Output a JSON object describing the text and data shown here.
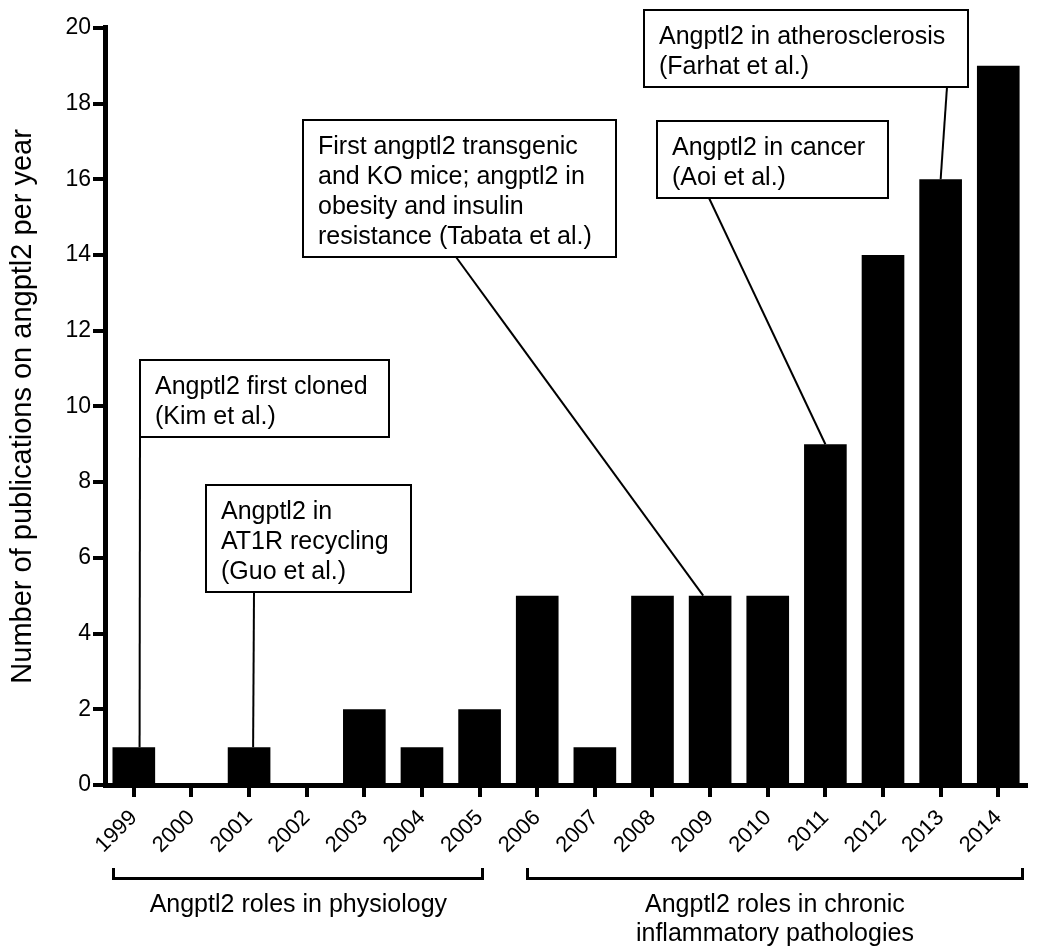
{
  "chart_data": {
    "type": "bar",
    "ylabel": "Number of publications on angptl2 per year",
    "categories": [
      "1999",
      "2000",
      "2001",
      "2002",
      "2003",
      "2004",
      "2005",
      "2006",
      "2007",
      "2008",
      "2009",
      "2010",
      "2011",
      "2012",
      "2013",
      "2014"
    ],
    "values": [
      1,
      0,
      1,
      0,
      2,
      1,
      2,
      5,
      1,
      5,
      5,
      5,
      9,
      14,
      16,
      19
    ],
    "color": "#000000",
    "ylim": [
      0,
      20
    ],
    "yticks": [
      0,
      2,
      4,
      6,
      8,
      10,
      12,
      14,
      16,
      18,
      20
    ],
    "annotations": [
      {
        "text": "Angptl2 first cloned (Kim et al.)",
        "x": "1999",
        "y": 1
      },
      {
        "text": "Angptl2 in AT1R recycling (Guo et al.)",
        "x": "2001",
        "y": 1
      },
      {
        "text": "First angptl2 transgenic and KO mice; angptl2 in obesity and insulin resistance (Tabata et al.)",
        "x": "2009",
        "y": 5
      },
      {
        "text": "Angptl2 in cancer (Aoi et al.)",
        "x": "2011",
        "y": 9
      },
      {
        "text": "Angptl2 in atherosclerosis (Farhat et al.)",
        "x": "2013",
        "y": 16
      },
      "Angptl2 roles in physiology",
      "Angptl2 roles in chronic inflammatory pathologies"
    ]
  }
}
